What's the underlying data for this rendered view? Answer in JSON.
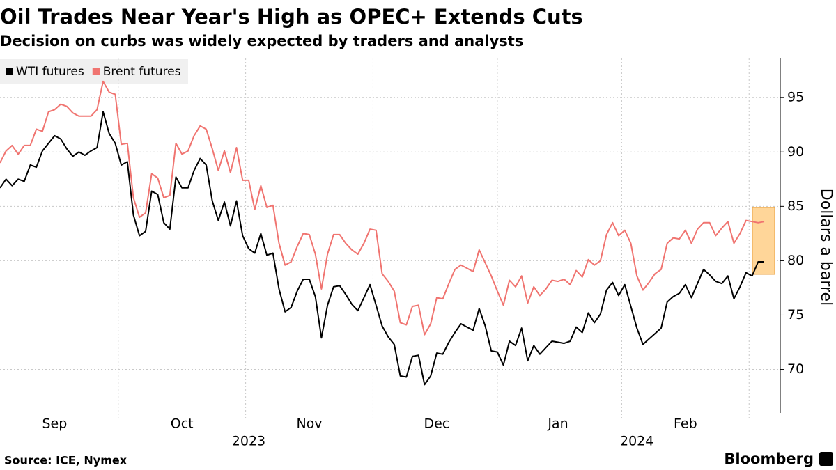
{
  "chart_data": {
    "type": "line",
    "title": "Oil Trades Near Year's High as OPEC+ Extends Cuts",
    "subtitle": "Decision on curbs was widely expected by traders and analysts",
    "y_label": "Dollars a barrel",
    "source": "Source: ICE, Nymex",
    "brand": "Bloomberg",
    "legend": "top-left",
    "grid": true,
    "ylim": [
      66,
      98.6
    ],
    "yticks": [
      70,
      75,
      80,
      85,
      90,
      95
    ],
    "categories": [
      null,
      null,
      null,
      null,
      null,
      null,
      null,
      null,
      null,
      "Sep",
      null,
      null,
      null,
      null,
      null,
      null,
      null,
      null,
      null,
      null,
      null,
      null,
      null,
      null,
      null,
      null,
      null,
      null,
      null,
      null,
      "Oct",
      null,
      null,
      null,
      null,
      null,
      null,
      null,
      null,
      null,
      null,
      null,
      null,
      null,
      null,
      null,
      null,
      null,
      null,
      null,
      null,
      "Nov",
      null,
      null,
      null,
      null,
      null,
      null,
      null,
      null,
      null,
      null,
      null,
      null,
      null,
      null,
      null,
      null,
      null,
      null,
      null,
      null,
      "Dec",
      null,
      null,
      null,
      null,
      null,
      null,
      null,
      null,
      null,
      null,
      null,
      null,
      null,
      null,
      null,
      null,
      null,
      null,
      null,
      "Jan",
      null,
      null,
      null,
      null,
      null,
      null,
      null,
      null,
      null,
      null,
      null,
      null,
      null,
      null,
      null,
      null,
      null,
      null,
      null,
      null,
      "Feb",
      null,
      null,
      null,
      null,
      null,
      null,
      null,
      null,
      null,
      null,
      null,
      null,
      null
    ],
    "category_years": [
      null,
      null,
      null,
      null,
      null,
      null,
      null,
      null,
      null,
      null,
      null,
      null,
      null,
      null,
      null,
      null,
      null,
      null,
      null,
      null,
      null,
      null,
      null,
      null,
      null,
      null,
      null,
      null,
      null,
      null,
      null,
      null,
      null,
      null,
      null,
      null,
      null,
      null,
      null,
      null,
      null,
      "2023",
      null,
      null,
      null,
      null,
      null,
      null,
      null,
      null,
      null,
      null,
      null,
      null,
      null,
      null,
      null,
      null,
      null,
      null,
      null,
      null,
      null,
      null,
      null,
      null,
      null,
      null,
      null,
      null,
      null,
      null,
      null,
      null,
      null,
      null,
      null,
      null,
      null,
      null,
      null,
      null,
      null,
      null,
      null,
      null,
      null,
      null,
      null,
      null,
      null,
      null,
      null,
      null,
      null,
      null,
      null,
      null,
      null,
      null,
      null,
      null,
      null,
      null,
      null,
      "2024",
      null,
      null,
      null,
      null,
      null,
      null,
      null,
      null,
      null,
      null,
      null,
      null,
      null,
      null,
      null,
      null,
      null,
      null,
      null,
      null,
      null
    ],
    "series": [
      {
        "name": "WTI futures",
        "color": "#000000",
        "values": [
          86.7,
          87.5,
          86.9,
          87.5,
          87.3,
          88.8,
          88.6,
          90.1,
          90.8,
          91.5,
          91.2,
          90.3,
          89.6,
          90.0,
          89.7,
          90.1,
          90.4,
          93.7,
          91.7,
          90.8,
          88.8,
          89.1,
          84.2,
          82.3,
          82.7,
          86.4,
          86.1,
          83.5,
          82.9,
          87.7,
          86.7,
          86.7,
          88.3,
          89.4,
          88.8,
          85.5,
          83.7,
          85.4,
          83.2,
          85.5,
          82.3,
          81.1,
          80.7,
          82.5,
          80.5,
          80.7,
          77.4,
          75.3,
          75.7,
          77.2,
          78.3,
          78.3,
          76.7,
          72.9,
          75.9,
          77.6,
          77.7,
          76.9,
          76.0,
          75.4,
          76.6,
          77.8,
          75.9,
          74.0,
          73.0,
          72.3,
          69.4,
          69.3,
          71.2,
          71.3,
          68.6,
          69.4,
          71.5,
          71.4,
          72.5,
          73.4,
          74.2,
          73.9,
          73.6,
          75.6,
          74.0,
          71.7,
          71.6,
          70.4,
          72.6,
          72.2,
          73.8,
          70.8,
          72.2,
          71.4,
          72.0,
          72.6,
          72.5,
          72.4,
          72.6,
          73.9,
          73.4,
          75.2,
          74.3,
          75.1,
          77.3,
          78.0,
          76.8,
          77.8,
          75.8,
          73.8,
          72.3,
          72.8,
          73.3,
          73.8,
          76.2,
          76.7,
          77.0,
          77.8,
          76.6,
          77.9,
          79.2,
          78.7,
          78.1,
          77.9,
          78.6,
          76.5,
          77.6,
          78.9,
          78.6,
          79.9,
          79.9
        ]
      },
      {
        "name": "Brent futures",
        "color": "#f07470",
        "values": [
          89.0,
          90.1,
          90.6,
          89.8,
          90.6,
          90.6,
          92.1,
          91.9,
          93.7,
          93.9,
          94.4,
          94.2,
          93.6,
          93.3,
          93.3,
          93.3,
          93.9,
          96.5,
          95.5,
          95.3,
          90.7,
          90.8,
          85.8,
          84.0,
          84.4,
          88.0,
          87.6,
          85.8,
          86.0,
          90.8,
          89.8,
          90.1,
          91.5,
          92.4,
          92.1,
          90.3,
          88.3,
          90.1,
          88.1,
          90.4,
          87.4,
          87.4,
          84.7,
          86.9,
          84.9,
          85.1,
          81.6,
          79.6,
          79.9,
          81.3,
          82.5,
          82.4,
          80.6,
          77.4,
          80.6,
          82.4,
          82.4,
          81.6,
          81.0,
          80.6,
          81.6,
          82.9,
          82.8,
          78.8,
          78.1,
          77.2,
          74.3,
          74.1,
          75.8,
          75.9,
          73.2,
          74.2,
          76.6,
          76.5,
          77.9,
          79.2,
          79.6,
          79.3,
          79.0,
          81.0,
          79.8,
          78.6,
          77.2,
          75.9,
          78.2,
          77.6,
          78.6,
          76.1,
          77.6,
          76.8,
          77.4,
          78.2,
          78.1,
          78.3,
          77.8,
          79.1,
          78.5,
          80.1,
          79.6,
          80.0,
          82.4,
          83.5,
          82.3,
          82.8,
          81.6,
          78.6,
          77.3,
          78.0,
          78.8,
          79.2,
          81.6,
          82.1,
          82.0,
          82.8,
          81.6,
          82.9,
          83.5,
          83.5,
          82.3,
          83.0,
          83.6,
          81.6,
          82.5,
          83.7,
          83.6,
          83.5,
          83.6
        ]
      }
    ]
  }
}
